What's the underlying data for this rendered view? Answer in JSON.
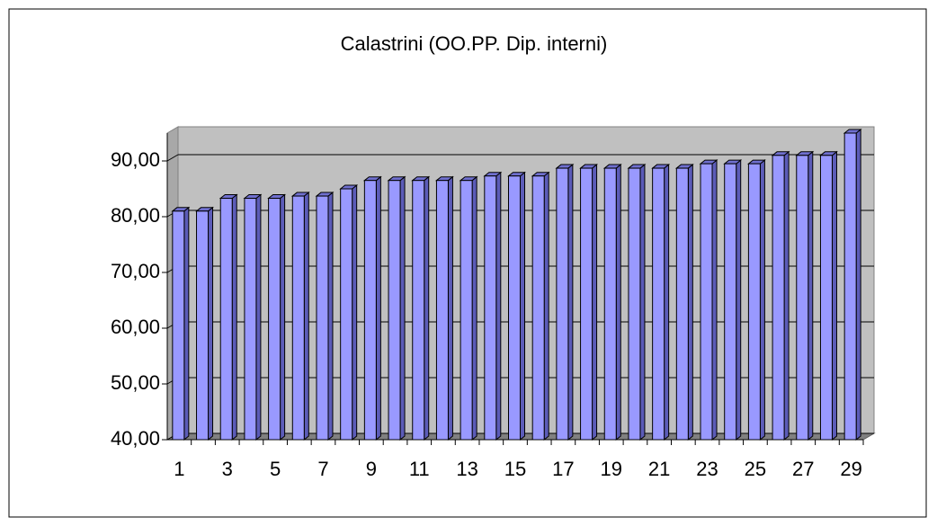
{
  "chart_data": {
    "type": "bar",
    "title": "Calastrini (OO.PP. Dip. interni)",
    "categories": [
      1,
      null,
      3,
      null,
      5,
      null,
      7,
      null,
      9,
      null,
      11,
      null,
      13,
      null,
      15,
      null,
      17,
      null,
      19,
      null,
      21,
      null,
      23,
      null,
      25,
      null,
      27,
      null,
      29
    ],
    "values": [
      81,
      81,
      83.3,
      83.3,
      83.3,
      83.7,
      83.7,
      85,
      86.5,
      86.5,
      86.5,
      86.5,
      86.5,
      87.3,
      87.3,
      87.3,
      88.7,
      88.7,
      88.7,
      88.7,
      88.7,
      88.7,
      89.5,
      89.5,
      89.5,
      91,
      91,
      91,
      95
    ],
    "color": "#9999ff",
    "ylim": [
      40,
      95
    ],
    "yticks": [
      {
        "value": 40,
        "label": "40,00"
      },
      {
        "value": 50,
        "label": "50,00"
      },
      {
        "value": 60,
        "label": "60,00"
      },
      {
        "value": 70,
        "label": "70,00"
      },
      {
        "value": 80,
        "label": "80,00"
      },
      {
        "value": 90,
        "label": "90,00"
      }
    ],
    "grid": true
  }
}
